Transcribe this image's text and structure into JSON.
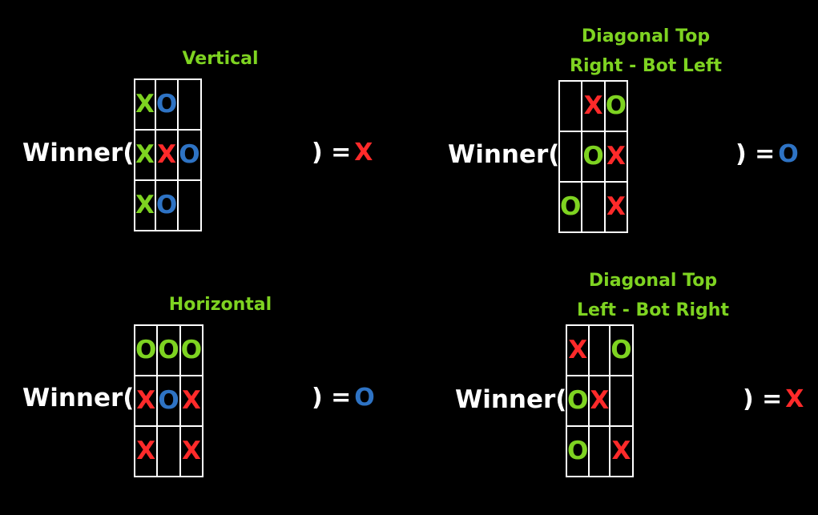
{
  "colors": {
    "background": "#000000",
    "title": "#7ed321",
    "label": "#ffffff",
    "green": "#7ed321",
    "red": "#ff2a2a",
    "blue": "#2e73c4"
  },
  "panels": [
    {
      "title_lines": [
        "Vertical"
      ],
      "winner_label": "Winner(",
      "close_label": ") =",
      "result": {
        "text": "X",
        "color": "red"
      },
      "cells": [
        [
          {
            "text": "X",
            "color": "green"
          },
          {
            "text": "O",
            "color": "blue"
          },
          {
            "text": "",
            "color": ""
          }
        ],
        [
          {
            "text": "X",
            "color": "green"
          },
          {
            "text": "X",
            "color": "red"
          },
          {
            "text": "O",
            "color": "blue"
          }
        ],
        [
          {
            "text": "X",
            "color": "green"
          },
          {
            "text": "O",
            "color": "blue"
          },
          {
            "text": "",
            "color": ""
          }
        ]
      ]
    },
    {
      "title_lines": [
        "Diagonal Top",
        "Right - Bot Left"
      ],
      "winner_label": "Winner(",
      "close_label": ") =",
      "result": {
        "text": "O",
        "color": "blue"
      },
      "cells": [
        [
          {
            "text": "",
            "color": ""
          },
          {
            "text": "X",
            "color": "red"
          },
          {
            "text": "O",
            "color": "green"
          }
        ],
        [
          {
            "text": "",
            "color": ""
          },
          {
            "text": "O",
            "color": "green"
          },
          {
            "text": "X",
            "color": "red"
          }
        ],
        [
          {
            "text": "O",
            "color": "green"
          },
          {
            "text": "",
            "color": ""
          },
          {
            "text": "X",
            "color": "red"
          }
        ]
      ]
    },
    {
      "title_lines": [
        "Horizontal"
      ],
      "winner_label": "Winner(",
      "close_label": ") =",
      "result": {
        "text": "O",
        "color": "blue"
      },
      "cells": [
        [
          {
            "text": "O",
            "color": "green"
          },
          {
            "text": "O",
            "color": "green"
          },
          {
            "text": "O",
            "color": "green"
          }
        ],
        [
          {
            "text": "X",
            "color": "red"
          },
          {
            "text": "O",
            "color": "blue"
          },
          {
            "text": "X",
            "color": "red"
          }
        ],
        [
          {
            "text": "X",
            "color": "red"
          },
          {
            "text": "",
            "color": ""
          },
          {
            "text": "X",
            "color": "red"
          }
        ]
      ]
    },
    {
      "title_lines": [
        "Diagonal Top",
        "Left - Bot Right"
      ],
      "winner_label": "Winner(",
      "close_label": ") =",
      "result": {
        "text": "X",
        "color": "red"
      },
      "cells": [
        [
          {
            "text": "X",
            "color": "red"
          },
          {
            "text": "",
            "color": ""
          },
          {
            "text": "O",
            "color": "green"
          }
        ],
        [
          {
            "text": "O",
            "color": "green"
          },
          {
            "text": "X",
            "color": "red"
          },
          {
            "text": "",
            "color": ""
          }
        ],
        [
          {
            "text": "O",
            "color": "green"
          },
          {
            "text": "",
            "color": ""
          },
          {
            "text": "X",
            "color": "red"
          }
        ]
      ]
    }
  ]
}
